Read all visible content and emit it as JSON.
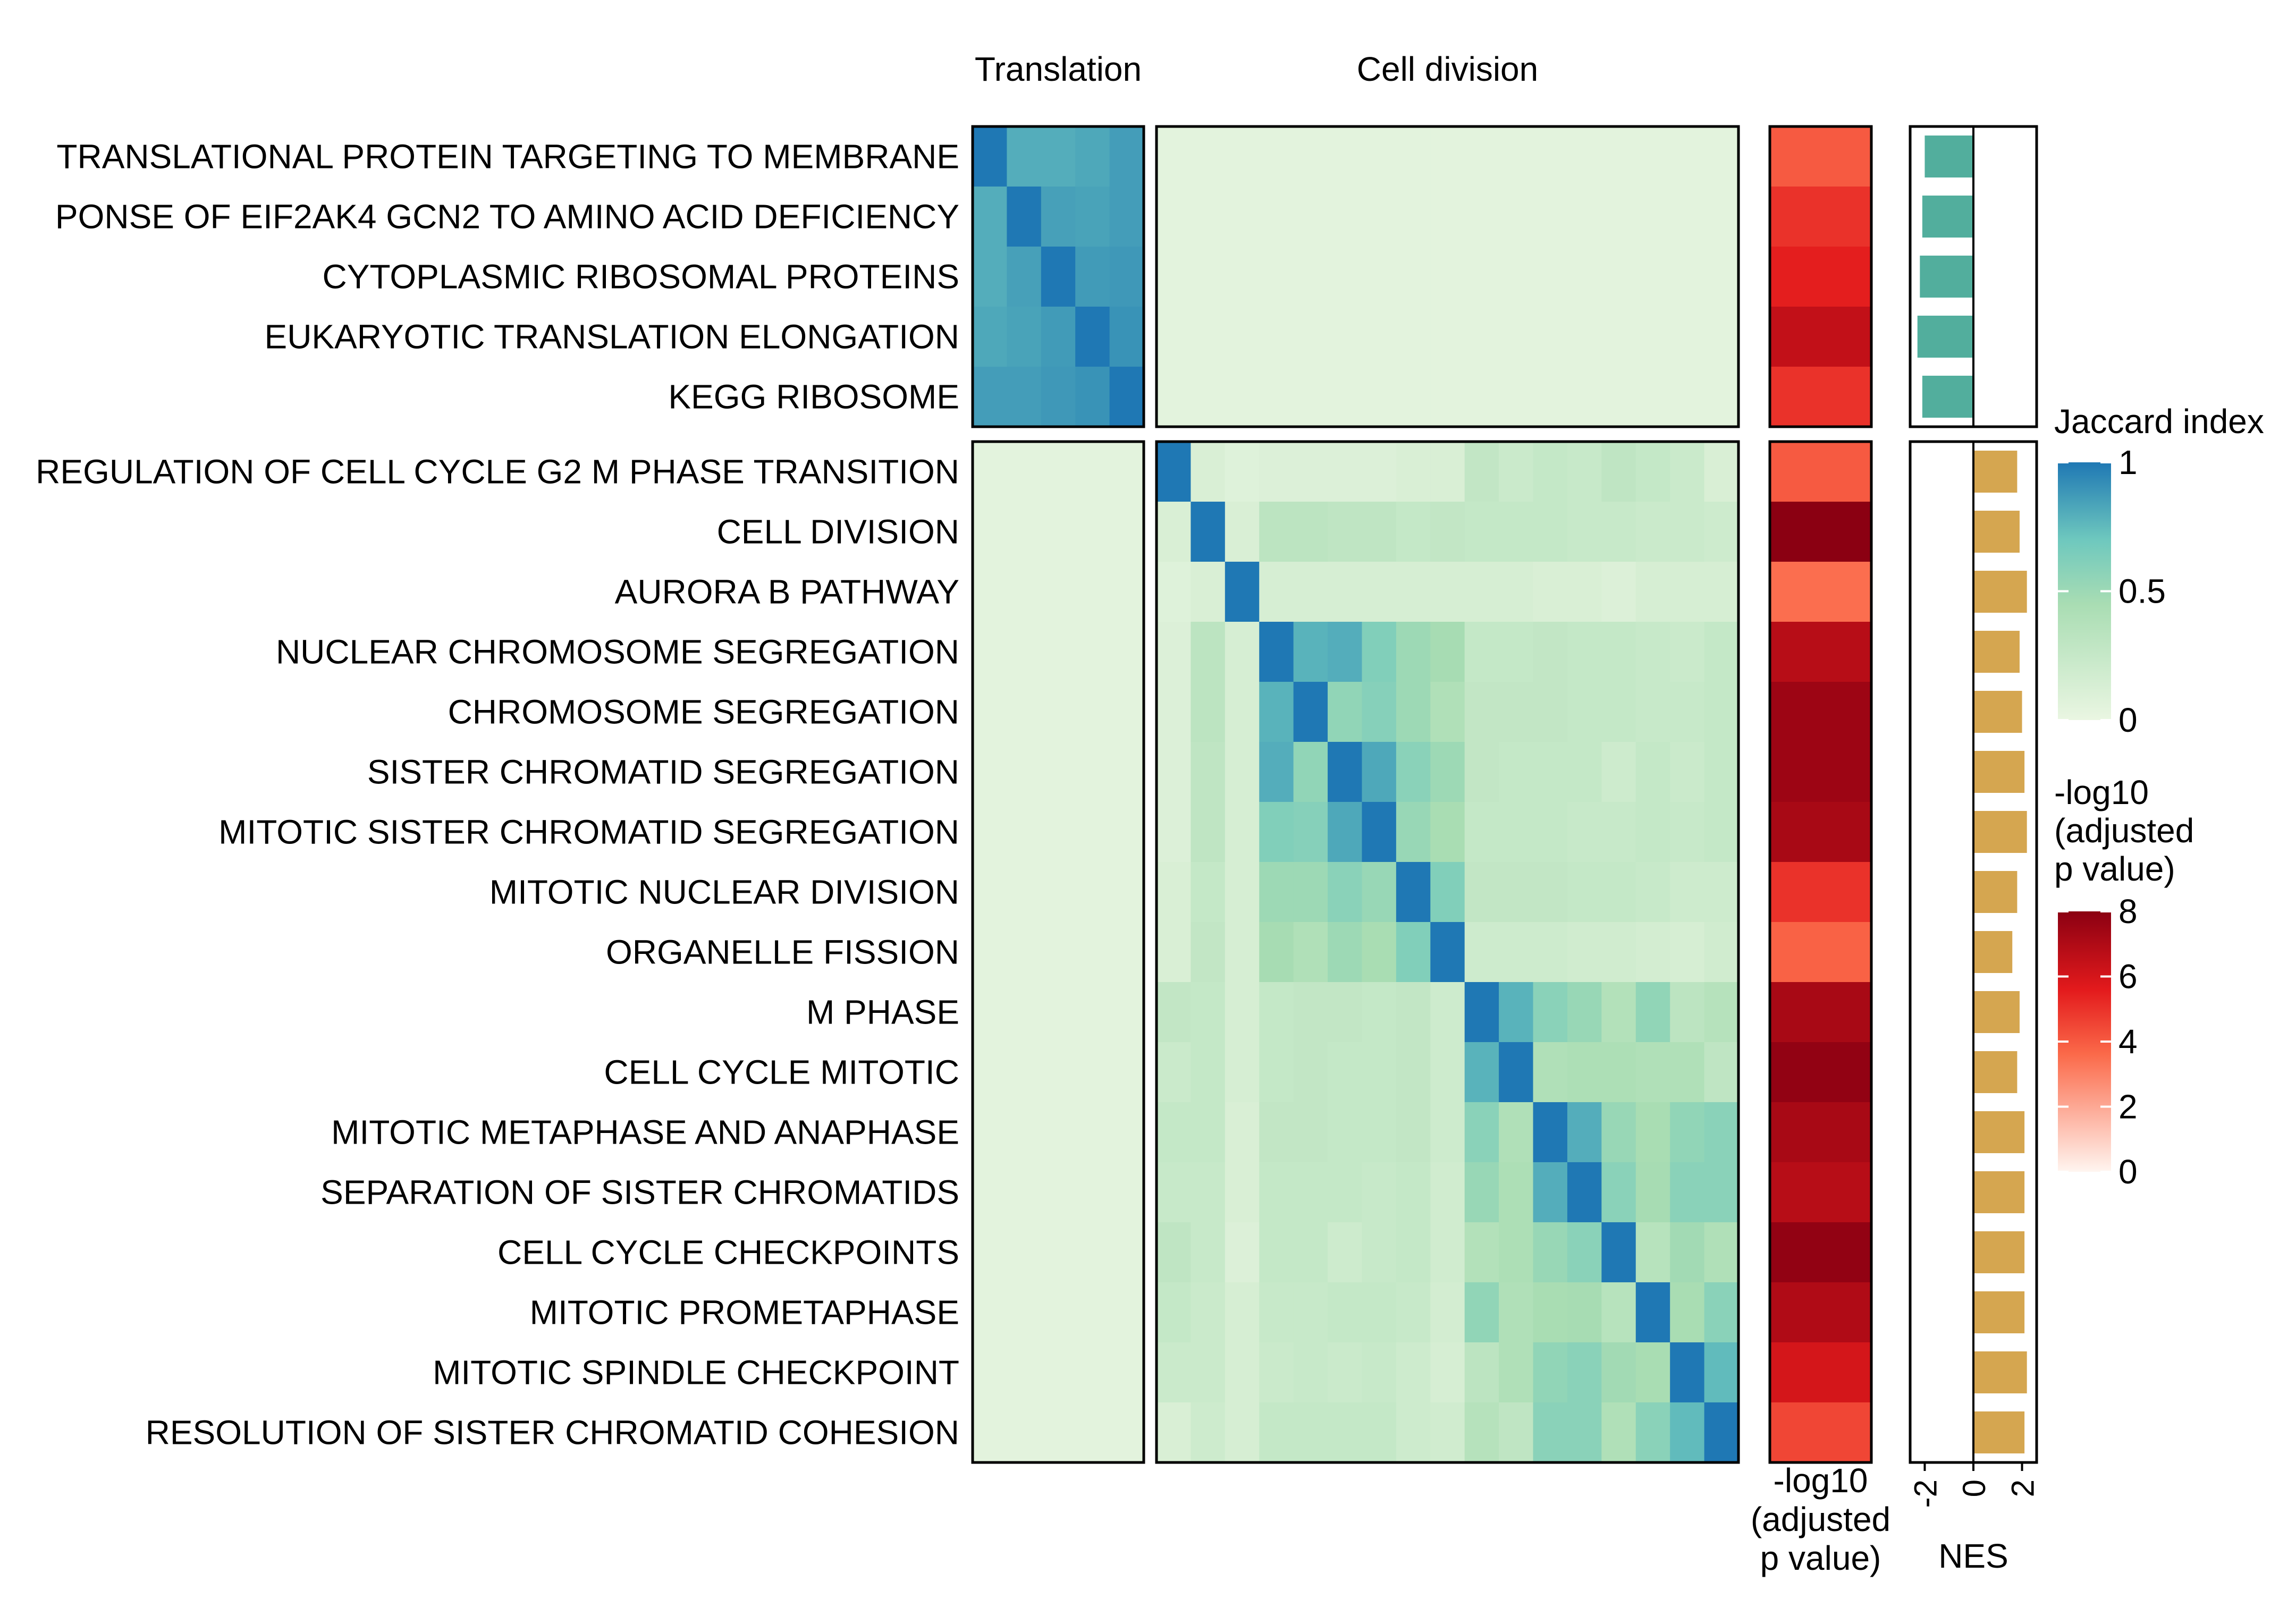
{
  "chart_data": {
    "type": "heatmap",
    "groups": [
      "Translation",
      "Cell division"
    ],
    "group_sizes": [
      5,
      17
    ],
    "rows": [
      "TRANSLATIONAL PROTEIN TARGETING TO MEMBRANE",
      "PONSE OF EIF2AK4 GCN2 TO AMINO ACID DEFICIENCY",
      "CYTOPLASMIC RIBOSOMAL PROTEINS",
      "EUKARYOTIC TRANSLATION ELONGATION",
      "KEGG RIBOSOME",
      "REGULATION OF CELL CYCLE G2 M PHASE TRANSITION",
      "CELL DIVISION",
      "AURORA B PATHWAY",
      "NUCLEAR CHROMOSOME SEGREGATION",
      "CHROMOSOME SEGREGATION",
      "SISTER CHROMATID SEGREGATION",
      "MITOTIC SISTER CHROMATID SEGREGATION",
      "MITOTIC NUCLEAR DIVISION",
      "ORGANELLE FISSION",
      "M PHASE",
      "CELL CYCLE MITOTIC",
      "MITOTIC METAPHASE AND ANAPHASE",
      "SEPARATION OF SISTER CHROMATIDS",
      "CELL CYCLE CHECKPOINTS",
      "MITOTIC PROMETAPHASE",
      "MITOTIC SPINDLE CHECKPOINT",
      "RESOLUTION OF SISTER CHROMATID COHESION"
    ],
    "jaccard_translation": [
      [
        1.0,
        0.8,
        0.8,
        0.82,
        0.86
      ],
      [
        0.8,
        1.0,
        0.85,
        0.84,
        0.86
      ],
      [
        0.8,
        0.85,
        1.0,
        0.87,
        0.88
      ],
      [
        0.82,
        0.84,
        0.87,
        1.0,
        0.9
      ],
      [
        0.86,
        0.86,
        0.88,
        0.9,
        1.0
      ]
    ],
    "jaccard_cell_division": [
      [
        1.0,
        0.12,
        0.08,
        0.1,
        0.1,
        0.1,
        0.1,
        0.12,
        0.12,
        0.28,
        0.22,
        0.26,
        0.24,
        0.3,
        0.26,
        0.22,
        0.12
      ],
      [
        0.12,
        1.0,
        0.12,
        0.32,
        0.32,
        0.3,
        0.3,
        0.26,
        0.28,
        0.26,
        0.26,
        0.26,
        0.24,
        0.24,
        0.22,
        0.22,
        0.2
      ],
      [
        0.08,
        0.12,
        1.0,
        0.14,
        0.14,
        0.14,
        0.14,
        0.14,
        0.14,
        0.14,
        0.14,
        0.12,
        0.12,
        0.1,
        0.14,
        0.14,
        0.14
      ],
      [
        0.1,
        0.32,
        0.14,
        1.0,
        0.78,
        0.8,
        0.62,
        0.5,
        0.46,
        0.26,
        0.26,
        0.28,
        0.26,
        0.26,
        0.24,
        0.22,
        0.26
      ],
      [
        0.1,
        0.32,
        0.14,
        0.78,
        1.0,
        0.55,
        0.6,
        0.5,
        0.4,
        0.28,
        0.28,
        0.28,
        0.26,
        0.26,
        0.24,
        0.24,
        0.26
      ],
      [
        0.1,
        0.3,
        0.14,
        0.8,
        0.55,
        1.0,
        0.82,
        0.58,
        0.5,
        0.28,
        0.26,
        0.26,
        0.26,
        0.2,
        0.26,
        0.22,
        0.26
      ],
      [
        0.1,
        0.3,
        0.14,
        0.62,
        0.6,
        0.82,
        1.0,
        0.52,
        0.45,
        0.26,
        0.26,
        0.26,
        0.24,
        0.24,
        0.26,
        0.24,
        0.26
      ],
      [
        0.12,
        0.26,
        0.14,
        0.5,
        0.5,
        0.58,
        0.52,
        1.0,
        0.62,
        0.28,
        0.28,
        0.28,
        0.26,
        0.26,
        0.24,
        0.2,
        0.2
      ],
      [
        0.12,
        0.28,
        0.14,
        0.46,
        0.4,
        0.5,
        0.45,
        0.62,
        1.0,
        0.2,
        0.2,
        0.2,
        0.18,
        0.18,
        0.16,
        0.14,
        0.18
      ],
      [
        0.28,
        0.26,
        0.14,
        0.26,
        0.28,
        0.28,
        0.26,
        0.28,
        0.2,
        1.0,
        0.78,
        0.58,
        0.52,
        0.38,
        0.55,
        0.32,
        0.36
      ],
      [
        0.22,
        0.26,
        0.14,
        0.26,
        0.28,
        0.26,
        0.26,
        0.28,
        0.2,
        0.78,
        1.0,
        0.4,
        0.42,
        0.42,
        0.4,
        0.4,
        0.3
      ],
      [
        0.26,
        0.26,
        0.12,
        0.28,
        0.28,
        0.26,
        0.26,
        0.28,
        0.2,
        0.58,
        0.4,
        1.0,
        0.8,
        0.52,
        0.45,
        0.55,
        0.58
      ],
      [
        0.24,
        0.24,
        0.12,
        0.26,
        0.26,
        0.26,
        0.24,
        0.26,
        0.18,
        0.52,
        0.42,
        0.8,
        1.0,
        0.58,
        0.46,
        0.58,
        0.58
      ],
      [
        0.3,
        0.24,
        0.1,
        0.26,
        0.26,
        0.2,
        0.24,
        0.26,
        0.18,
        0.38,
        0.42,
        0.52,
        0.58,
        1.0,
        0.35,
        0.48,
        0.4
      ],
      [
        0.26,
        0.22,
        0.14,
        0.24,
        0.24,
        0.26,
        0.26,
        0.24,
        0.16,
        0.55,
        0.4,
        0.45,
        0.46,
        0.35,
        1.0,
        0.45,
        0.58
      ],
      [
        0.22,
        0.22,
        0.14,
        0.22,
        0.24,
        0.22,
        0.24,
        0.2,
        0.14,
        0.32,
        0.4,
        0.55,
        0.58,
        0.48,
        0.45,
        1.0,
        0.75
      ],
      [
        0.12,
        0.2,
        0.14,
        0.26,
        0.26,
        0.26,
        0.26,
        0.2,
        0.18,
        0.36,
        0.3,
        0.58,
        0.58,
        0.4,
        0.58,
        0.75,
        1.0
      ]
    ],
    "jaccard_between_groups": 0.05,
    "neg_log10_adj_p": [
      4.0,
      5.0,
      5.5,
      6.5,
      5.0,
      4.0,
      8.0,
      3.5,
      6.8,
      7.5,
      7.5,
      7.2,
      5.0,
      3.8,
      7.2,
      7.8,
      7.2,
      6.8,
      7.8,
      7.0,
      6.0,
      4.5
    ],
    "nes": [
      -2.0,
      -2.1,
      -2.2,
      -2.3,
      -2.1,
      1.8,
      1.9,
      2.2,
      1.9,
      2.0,
      2.1,
      2.2,
      1.8,
      1.6,
      1.9,
      1.8,
      2.1,
      2.1,
      2.1,
      2.1,
      2.2,
      2.1
    ],
    "nes_axis": {
      "label": "NES",
      "ticks": [
        "-2",
        "0",
        "2"
      ],
      "range": [
        -2.6,
        2.6
      ]
    },
    "pval_axis_label": [
      "-log10",
      "(adjusted",
      "p value)"
    ],
    "legend_jaccard": {
      "title": "Jaccard index",
      "ticks": [
        "1",
        "0.5",
        "0"
      ],
      "range": [
        0,
        1
      ]
    },
    "legend_pval": {
      "title": [
        "-log10",
        "(adjusted",
        "p value)"
      ],
      "ticks": [
        "8",
        "6",
        "4",
        "2",
        "0"
      ],
      "range": [
        0,
        8
      ]
    },
    "colors": {
      "jaccard_low": "#EAF6E2",
      "jaccard_mid": "#A9DDB3",
      "jaccard_mid2": "#6EC8BE",
      "jaccard_high": "#1F78B4",
      "pval_low": "#FFF5F0",
      "pval_mid": "#FB6A4A",
      "pval_mid2": "#E31A1C",
      "pval_high": "#8B0012",
      "nes_negative": "#52AE9D",
      "nes_positive": "#D5A650",
      "border": "#000000"
    }
  }
}
